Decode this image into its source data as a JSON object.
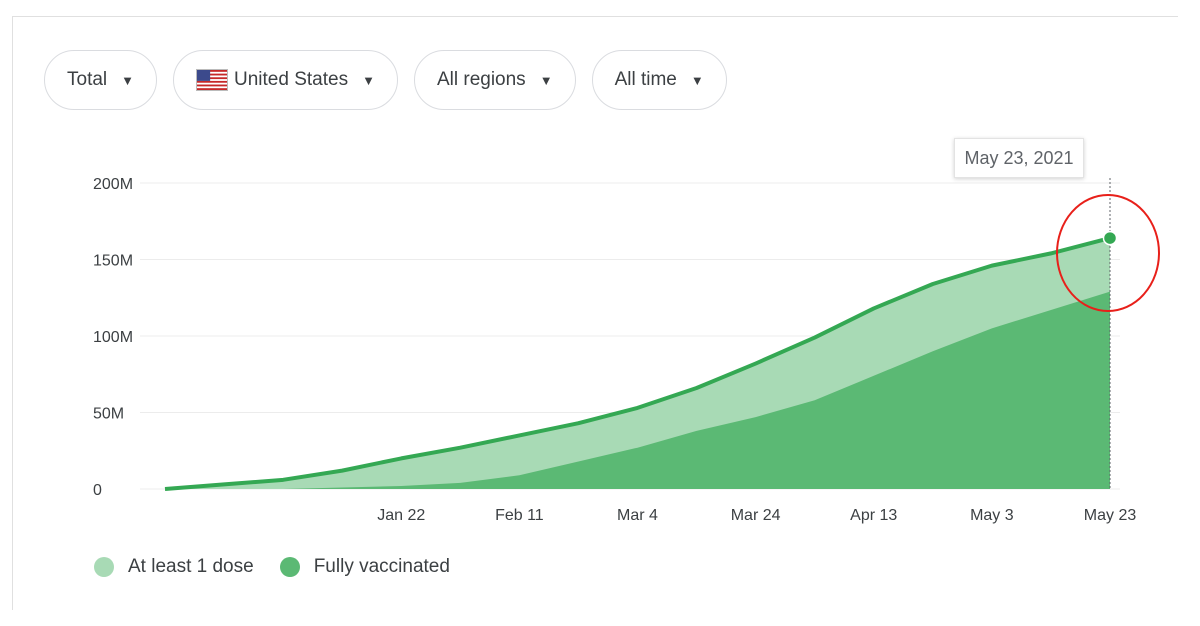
{
  "filters": {
    "measure": "Total",
    "country": "United States",
    "region": "All regions",
    "period": "All time"
  },
  "tooltip": {
    "date": "May 23, 2021"
  },
  "colors": {
    "at_least_one_dose": "#a8dab5",
    "fully_vaccinated": "#5bb974",
    "line": "#34a853",
    "highlight_circle": "#e8201a"
  },
  "chart_data": {
    "type": "area",
    "x": [
      "Dec 14",
      "Dec 24",
      "Jan 3",
      "Jan 13",
      "Jan 22",
      "Feb 1",
      "Feb 11",
      "Feb 21",
      "Mar 4",
      "Mar 14",
      "Mar 24",
      "Apr 3",
      "Apr 13",
      "Apr 23",
      "May 3",
      "May 13",
      "May 23"
    ],
    "series": [
      {
        "name": "At least 1 dose",
        "values": [
          0,
          3,
          6,
          12,
          20,
          27,
          35,
          43,
          53,
          66,
          82,
          99,
          118,
          134,
          146,
          154,
          164
        ]
      },
      {
        "name": "Fully vaccinated",
        "values": [
          0,
          0,
          0,
          1,
          2,
          4,
          9,
          18,
          27,
          38,
          47,
          58,
          74,
          90,
          105,
          117,
          129
        ]
      }
    ],
    "x_tick_labels": [
      "Jan 22",
      "Feb 11",
      "Mar 4",
      "Mar 24",
      "Apr 13",
      "May 3",
      "May 23"
    ],
    "y_tick_labels": [
      "0",
      "50M",
      "100M",
      "150M",
      "200M"
    ],
    "y_ticks": [
      0,
      50,
      100,
      150,
      200
    ],
    "ylim": [
      0,
      200
    ],
    "grid": true,
    "legend_position": "bottom-left",
    "highlighted_point": {
      "x": "May 23",
      "series": "At least 1 dose",
      "value": 164
    }
  }
}
